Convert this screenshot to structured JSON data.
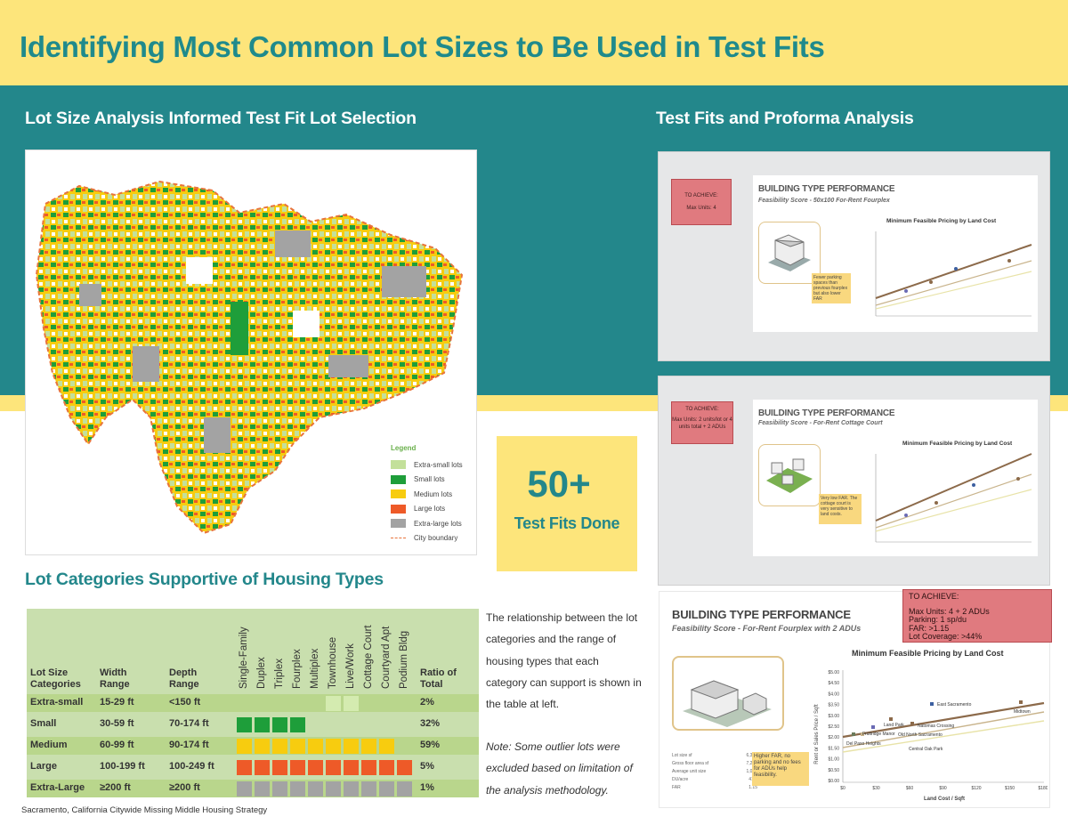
{
  "header": {
    "title": "Identifying Most Common Lot Sizes to Be Used in Test Fits"
  },
  "sections": {
    "left_title": "Lot Size Analysis Informed Test Fit Lot Selection",
    "right_title": "Test Fits and Proforma Analysis",
    "table_title": "Lot Categories Supportive of Housing Types"
  },
  "legend": {
    "title": "Legend",
    "items": [
      {
        "label": "Extra-small lots",
        "color": "#c3e09a"
      },
      {
        "label": "Small lots",
        "color": "#1e9e3a"
      },
      {
        "label": "Medium lots",
        "color": "#f7cc0f"
      },
      {
        "label": "Large lots",
        "color": "#ee5a28"
      },
      {
        "label": "Extra-large lots",
        "color": "#a3a3a3"
      },
      {
        "label": "City boundary",
        "color": "#e8743b"
      }
    ]
  },
  "callout": {
    "number": "50+",
    "label": "Test Fits Done"
  },
  "table": {
    "headers": {
      "lot": "Lot Size Categories",
      "width": "Width Range",
      "depth": "Depth Range",
      "ratio": "Ratio of Total"
    },
    "housing_types": [
      "Single-Family",
      "Duplex",
      "Triplex",
      "Fourplex",
      "Multiplex",
      "Townhouse",
      "Live/Work",
      "Cottage Court",
      "Courtyard Apt",
      "Podium Bldg"
    ],
    "rows": [
      {
        "category": "Extra-small",
        "width": "15-29 ft",
        "depth": "<150 ft",
        "ratio": "2%",
        "cells": [
          0,
          0,
          0,
          0,
          0,
          5,
          5,
          0,
          0,
          0
        ],
        "row_color": "#b9d68c"
      },
      {
        "category": "Small",
        "width": "30-59 ft",
        "depth": "70-174 ft",
        "ratio": "32%",
        "cells": [
          2,
          2,
          2,
          2,
          0,
          0,
          0,
          0,
          0,
          0
        ],
        "row_color": "#c9dfae"
      },
      {
        "category": "Medium",
        "width": "60-99 ft",
        "depth": "90-174 ft",
        "ratio": "59%",
        "cells": [
          3,
          3,
          3,
          3,
          3,
          3,
          3,
          3,
          3,
          0
        ],
        "row_color": "#b9d68c"
      },
      {
        "category": "Large",
        "width": "100-199 ft",
        "depth": "100-249 ft",
        "ratio": "5%",
        "cells": [
          4,
          4,
          4,
          4,
          4,
          4,
          4,
          4,
          4,
          4
        ],
        "row_color": "#c9dfae"
      },
      {
        "category": "Extra-Large",
        "width": "≥200 ft",
        "depth": "≥200 ft",
        "ratio": "1%",
        "cells": [
          1,
          1,
          1,
          1,
          1,
          1,
          1,
          1,
          1,
          1
        ],
        "row_color": "#b9d68c"
      }
    ],
    "cell_colors": [
      "#c9dfae",
      "#a3a3a3",
      "#1e9e3a",
      "#f7cc0f",
      "#ee5a28",
      "#d4ebb0"
    ]
  },
  "description": {
    "main": "The relationship between the lot categories and the range of housing types that each category can support is shown in the table at left.",
    "note": "Note: Some outlier lots were excluded based on limitation of the analysis methodology."
  },
  "footer": "Sacramento, California Citywide Missing Middle Housing Strategy",
  "cards": [
    {
      "achieve_title": "TO ACHIEVE:",
      "achieve_body": "Max Units: 4",
      "heading": "BUILDING TYPE PERFORMANCE",
      "subheading": "Feasibility Score - 50x100 For-Rent Fourplex",
      "chart_title": "Minimum Feasible Pricing by Land Cost",
      "note": "Fewer parking spaces than previous fourplex but also lower FAR",
      "points": [
        "East Sacramento",
        "Midtown",
        "Land Park",
        "Tahoe Park",
        "Natomas Crossing",
        "Old North Sacramento",
        "Fruitridge Manor",
        "Del Paso Heights",
        "Central Oak Park"
      ]
    },
    {
      "achieve_title": "TO ACHIEVE:",
      "achieve_body": "Max Units: 2 units/lot or 4 units total + 2 ADUs",
      "heading": "BUILDING TYPE PERFORMANCE",
      "subheading": "Feasibility Score - For-Rent Cottage Court",
      "chart_title": "Minimum Feasible Pricing by Land Cost",
      "note": "Very low FAR. The cottage court is very sensitive to land costs.",
      "points": [
        "East Sacramento",
        "Midtown",
        "Land Park",
        "Tahoe Park",
        "Natomas Crossing",
        "Old North Sacramento",
        "Fruitridge Manor",
        "Del Paso Heights",
        "Central Oak Park"
      ]
    },
    {
      "achieve_title": "TO ACHIEVE:",
      "achieve_lines": [
        "Max Units: 4 + 2 ADUs",
        "Parking: 1 sp/du",
        "FAR: >1.15",
        "Lot Coverage: >44%"
      ],
      "heading": "BUILDING TYPE PERFORMANCE",
      "subheading": "Feasibility Score - For-Rent Fourplex with 2 ADUs",
      "chart_title": "Minimum Feasible Pricing by Land Cost",
      "note": "Higher FAR, no parking and no fees for ADUs help feasibility.",
      "y_label": "Rent or Sales Price / Sqft",
      "x_label": "Land Cost / Sqft",
      "y_ticks": [
        "$5.00",
        "$4.50",
        "$4.00",
        "$3.50",
        "$3.00",
        "$2.50",
        "$2.00",
        "$1.50",
        "$1.00",
        "$0.50",
        "$0.00"
      ],
      "x_ticks": [
        "$0",
        "$30",
        "$60",
        "$90",
        "$120",
        "$150",
        "$180"
      ],
      "points": [
        "East Sacramento",
        "Midtown",
        "Land Park",
        "Tahoe Park",
        "Natomas Crossing",
        "Old North Sacramento",
        "Fruitridge Manor",
        "Del Paso Heights",
        "Central Oak Park"
      ],
      "stats": [
        {
          "label": "Lot size sf",
          "value": "6,300"
        },
        {
          "label": "Gross floor area sf",
          "value": "7,272"
        },
        {
          "label": "Average unit size",
          "value": "1,083"
        },
        {
          "label": "DU/acre",
          "value": "41.5"
        },
        {
          "label": "FAR",
          "value": "1.15"
        }
      ]
    }
  ]
}
